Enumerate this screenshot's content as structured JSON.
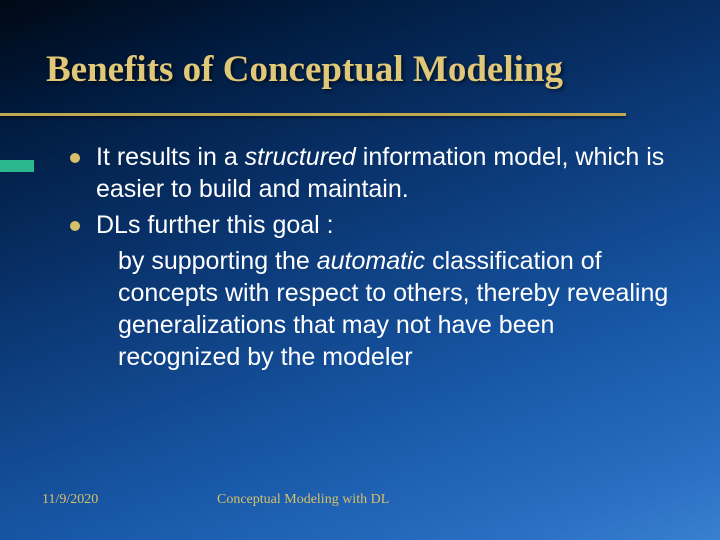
{
  "slide": {
    "title": "Benefits of Conceptual Modeling",
    "bullets": [
      {
        "pre": "It results in a ",
        "em": "structured",
        "post": " information model, which is easier to build and maintain."
      },
      {
        "pre": "DLs further this goal :",
        "em": "",
        "post": ""
      }
    ],
    "sublines": {
      "pre": "by supporting the ",
      "em": "automatic",
      "post": " classification of concepts with respect to others, thereby revealing generalizations that may not have been recognized by the modeler"
    },
    "footer": {
      "date": "11/9/2020",
      "title": "Conceptual Modeling with DL"
    }
  },
  "style": {
    "title_color": "#e0c878",
    "bullet_color": "#d8c068",
    "text_color": "#ffffff",
    "accent_color": "#2bb890",
    "title_fontsize": 37,
    "body_fontsize": 25,
    "footer_fontsize": 14,
    "background_gradient": [
      "#000814",
      "#001a3d",
      "#0a3570",
      "#1858a8",
      "#2a6fc2",
      "#3a80d0"
    ]
  }
}
